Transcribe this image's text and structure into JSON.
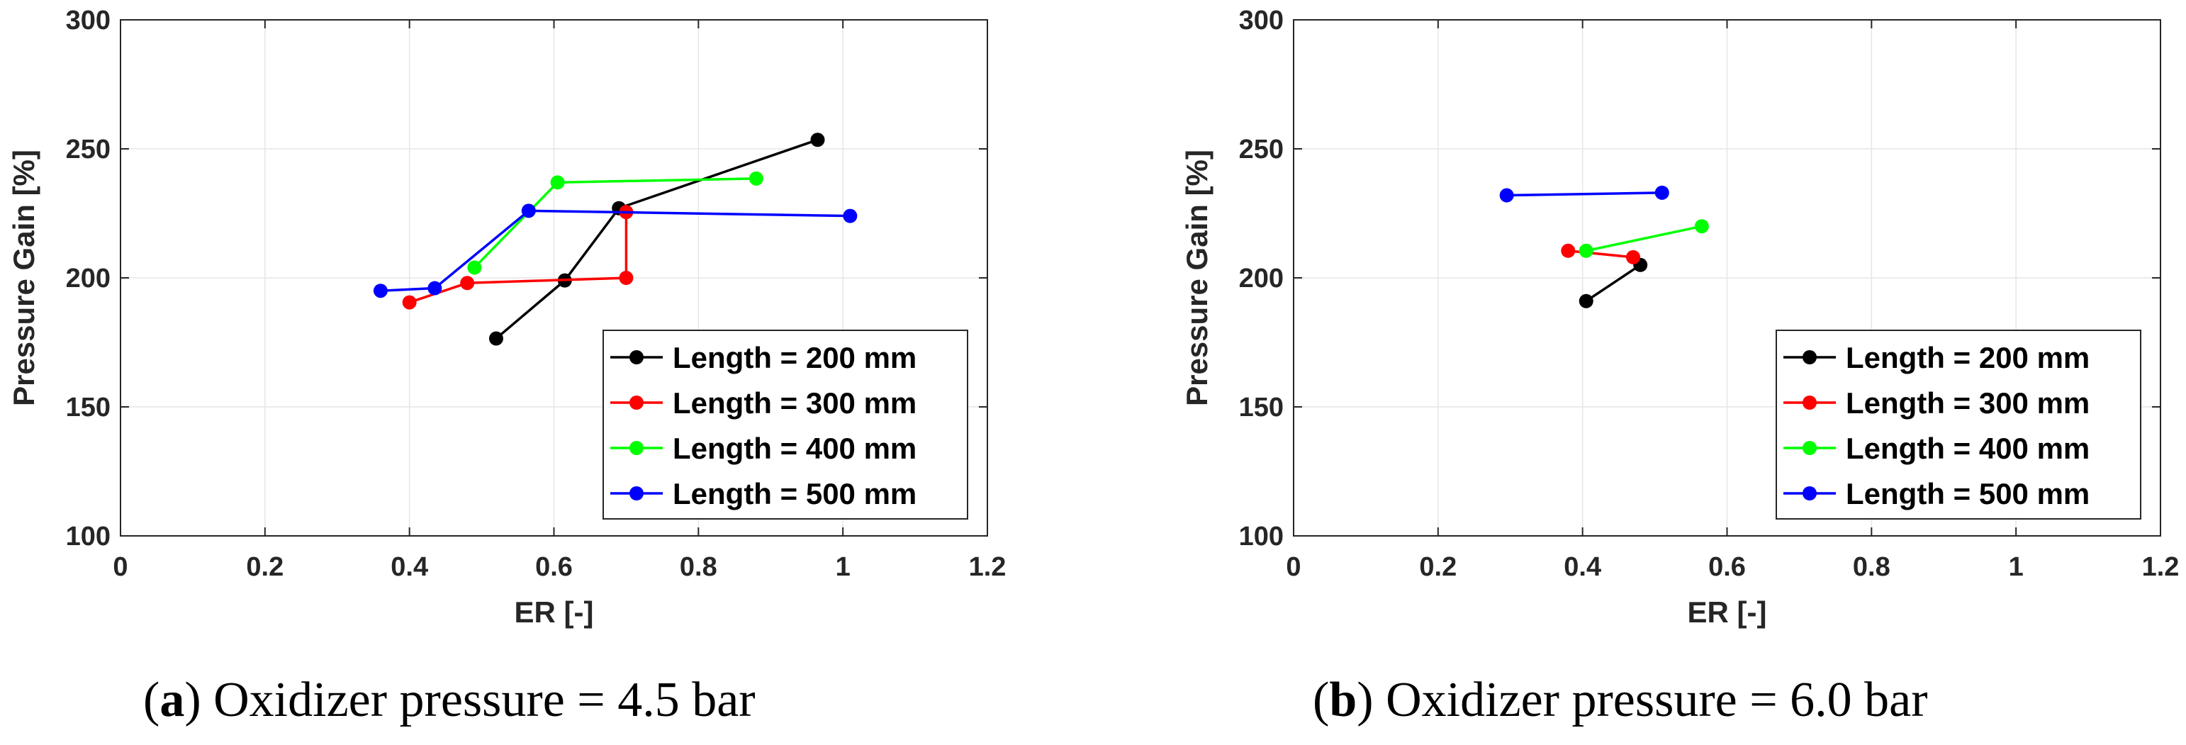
{
  "chart_data": [
    {
      "type": "line",
      "panel": "a",
      "caption_letter": "a",
      "caption_text": "Oxidizer pressure = 4.5 bar",
      "xlabel": "ER [-]",
      "ylabel": "Pressure Gain [%]",
      "xlim": [
        0,
        1.2
      ],
      "ylim": [
        100,
        300
      ],
      "xticks": [
        0,
        0.2,
        0.4,
        0.6,
        0.8,
        1,
        1.2
      ],
      "xtick_labels": [
        "0",
        "0.2",
        "0.4",
        "0.6",
        "0.8",
        "1",
        "1.2"
      ],
      "yticks": [
        100,
        150,
        200,
        250,
        300
      ],
      "ytick_labels": [
        "100",
        "150",
        "200",
        "250",
        "300"
      ],
      "grid": true,
      "legend_position": "bottom-right",
      "series": [
        {
          "name": "Length = 200 mm",
          "color": "#000000",
          "x": [
            0.52,
            0.615,
            0.69,
            0.965
          ],
          "y": [
            176.5,
            199,
            227,
            253.5
          ]
        },
        {
          "name": "Length = 300 mm",
          "color": "#ff0000",
          "x": [
            0.4,
            0.48,
            0.7,
            0.7
          ],
          "y": [
            190.5,
            198,
            200,
            225.5
          ]
        },
        {
          "name": "Length = 400 mm",
          "color": "#00ff00",
          "x": [
            0.49,
            0.605,
            0.88
          ],
          "y": [
            204,
            237,
            238.5
          ]
        },
        {
          "name": "Length = 500 mm",
          "color": "#0000ff",
          "x": [
            0.36,
            0.435,
            0.565,
            1.01
          ],
          "y": [
            195,
            196,
            226,
            224
          ]
        }
      ]
    },
    {
      "type": "line",
      "panel": "b",
      "caption_letter": "b",
      "caption_text": "Oxidizer pressure = 6.0 bar",
      "xlabel": "ER [-]",
      "ylabel": "Pressure Gain [%]",
      "xlim": [
        0,
        1.2
      ],
      "ylim": [
        100,
        300
      ],
      "xticks": [
        0,
        0.2,
        0.4,
        0.6,
        0.8,
        1,
        1.2
      ],
      "xtick_labels": [
        "0",
        "0.2",
        "0.4",
        "0.6",
        "0.8",
        "1",
        "1.2"
      ],
      "yticks": [
        100,
        150,
        200,
        250,
        300
      ],
      "ytick_labels": [
        "100",
        "150",
        "200",
        "250",
        "300"
      ],
      "grid": true,
      "legend_position": "bottom-right",
      "series": [
        {
          "name": "Length = 200 mm",
          "color": "#000000",
          "x": [
            0.405,
            0.48
          ],
          "y": [
            191,
            205
          ]
        },
        {
          "name": "Length = 300 mm",
          "color": "#ff0000",
          "x": [
            0.38,
            0.47
          ],
          "y": [
            210.5,
            208
          ]
        },
        {
          "name": "Length = 400 mm",
          "color": "#00ff00",
          "x": [
            0.405,
            0.565
          ],
          "y": [
            210.5,
            220
          ]
        },
        {
          "name": "Length = 500 mm",
          "color": "#0000ff",
          "x": [
            0.295,
            0.51
          ],
          "y": [
            232,
            233
          ]
        }
      ]
    }
  ]
}
